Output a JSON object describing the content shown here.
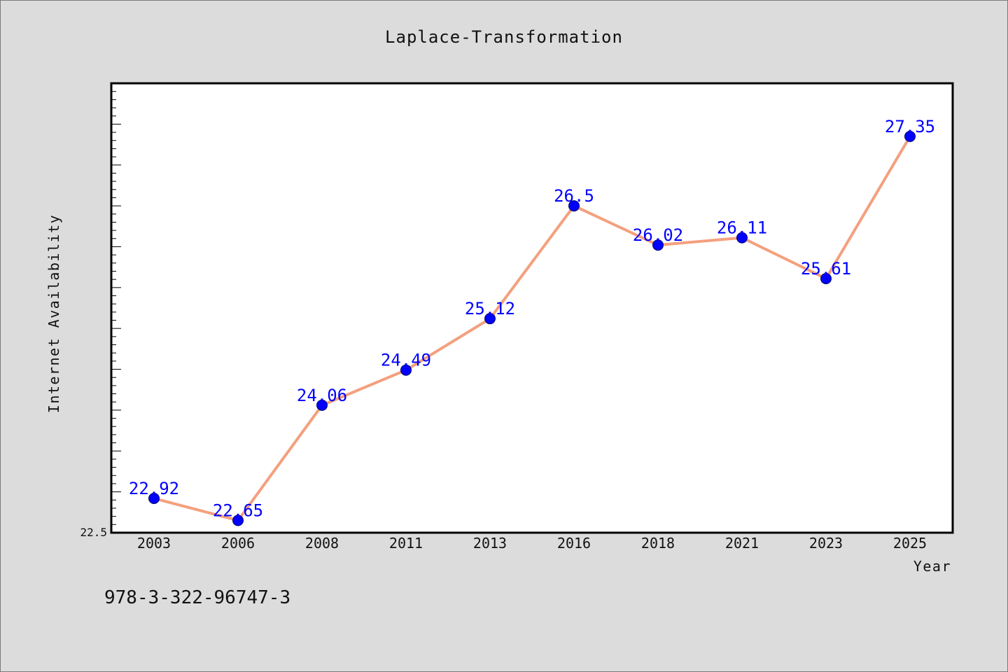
{
  "chart_data": {
    "type": "line",
    "title": "Laplace-Transformation",
    "xlabel": "Year",
    "ylabel": "Internet Availability",
    "categories": [
      "2003",
      "2006",
      "2008",
      "2011",
      "2013",
      "2016",
      "2018",
      "2021",
      "2023",
      "2025"
    ],
    "series": [
      {
        "values": [
          22.92,
          22.65,
          24.06,
          24.49,
          25.12,
          26.5,
          26.02,
          26.11,
          25.61,
          27.35
        ],
        "labels": [
          "22.92",
          "22.65",
          "24.06",
          "24.49",
          "25.12",
          "26.5",
          "26.02",
          "26.11",
          "25.61",
          "27.35"
        ]
      }
    ],
    "ylim": [
      22.5,
      28.0
    ],
    "yticks": [
      "22.5"
    ],
    "grid": false,
    "line_color": "#f4a07e",
    "marker_color": "#0000ff",
    "label_color": "#0000ff"
  },
  "footer": {
    "isbn": "978-3-322-96747-3"
  }
}
